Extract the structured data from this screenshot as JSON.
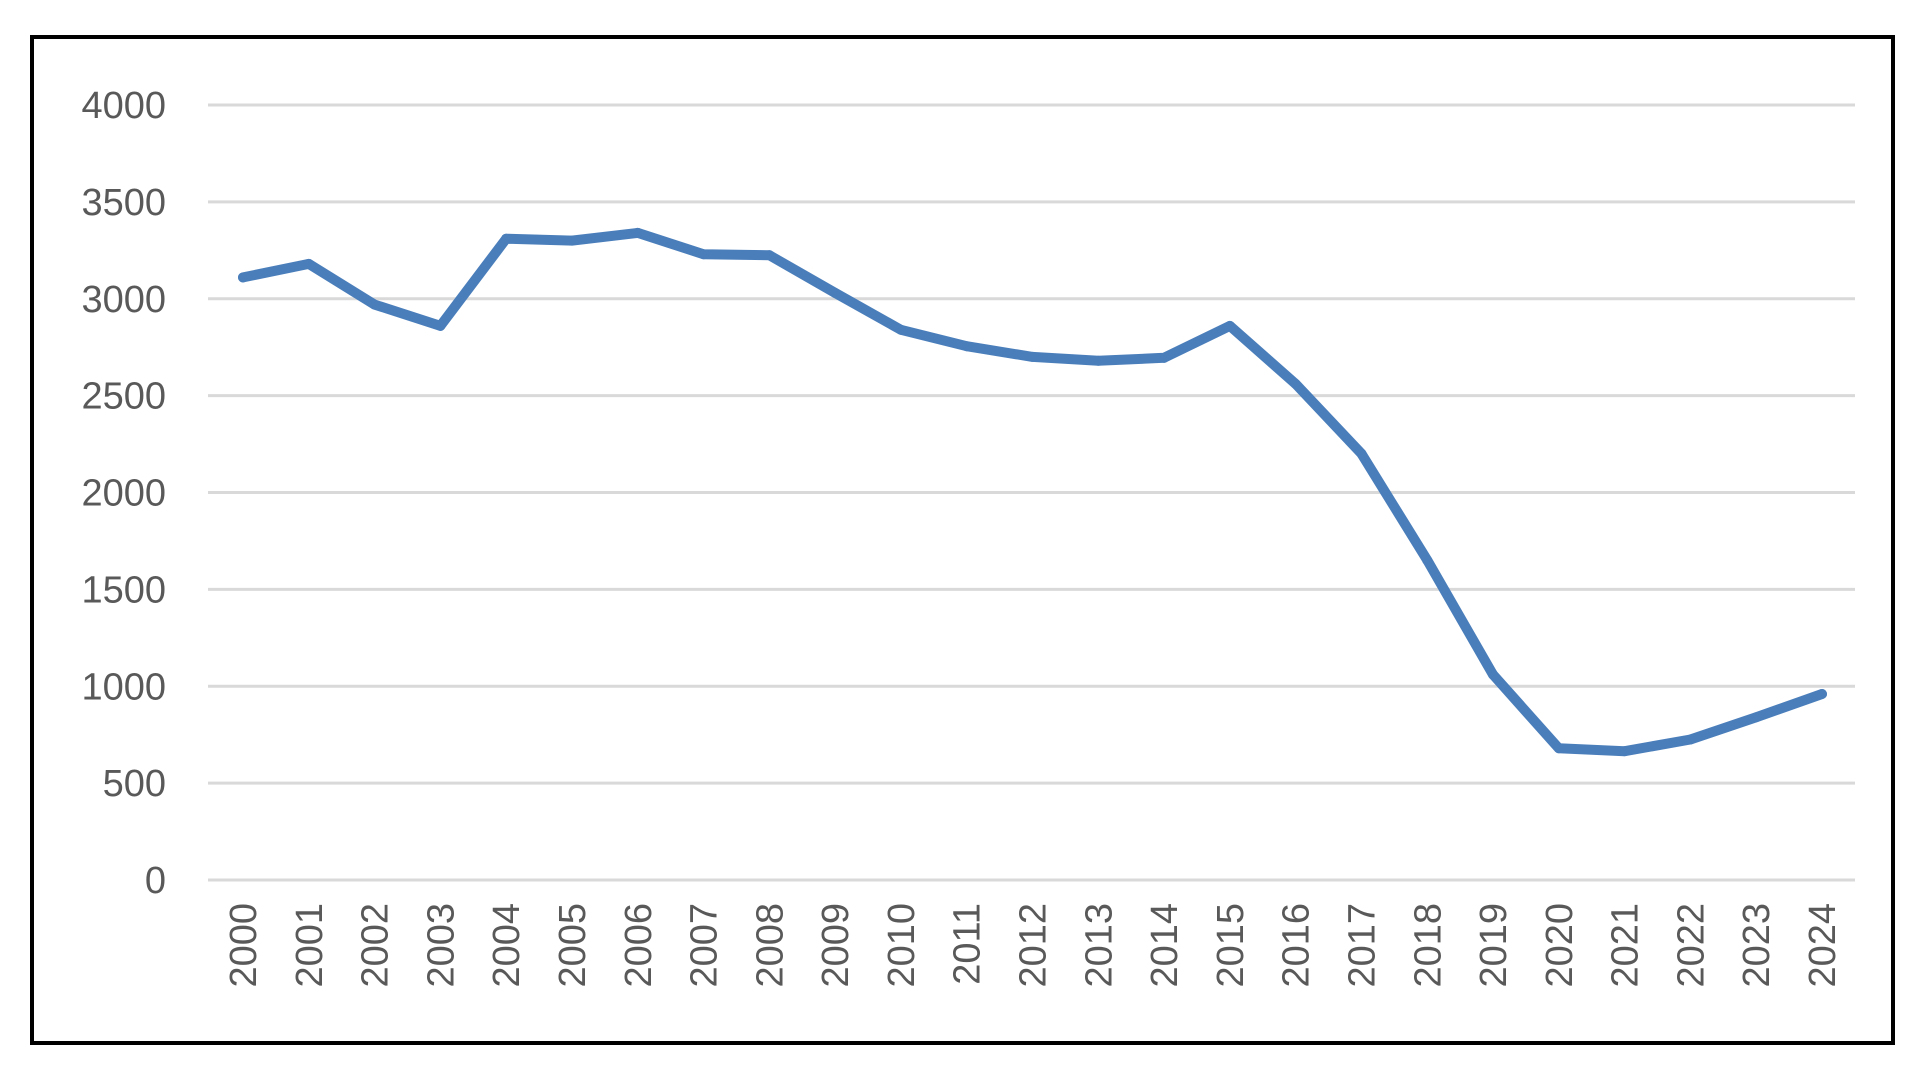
{
  "chart_data": {
    "type": "line",
    "title": "",
    "xlabel": "",
    "ylabel": "",
    "categories": [
      "2000",
      "2001",
      "2002",
      "2003",
      "2004",
      "2005",
      "2006",
      "2007",
      "2008",
      "2009",
      "2010",
      "2011",
      "2012",
      "2013",
      "2014",
      "2015",
      "2016",
      "2017",
      "2018",
      "2019",
      "2020",
      "2021",
      "2022",
      "2023",
      "2024"
    ],
    "series": [
      {
        "values": [
          3110,
          3180,
          2970,
          2860,
          3310,
          3300,
          3340,
          3230,
          3225,
          3030,
          2840,
          2755,
          2700,
          2680,
          2695,
          2860,
          2560,
          2200,
          1650,
          1060,
          680,
          665,
          725,
          840,
          960
        ]
      }
    ],
    "ylim": [
      0,
      4000
    ],
    "yticks": [
      "0",
      "500",
      "1000",
      "1500",
      "2000",
      "2500",
      "3000",
      "3500",
      "4000"
    ],
    "grid": true,
    "legend": "none",
    "colors": {
      "line": "#4a7ebb",
      "grid": "#d9d9d9",
      "tick_text": "#595959",
      "border": "#000000"
    }
  }
}
